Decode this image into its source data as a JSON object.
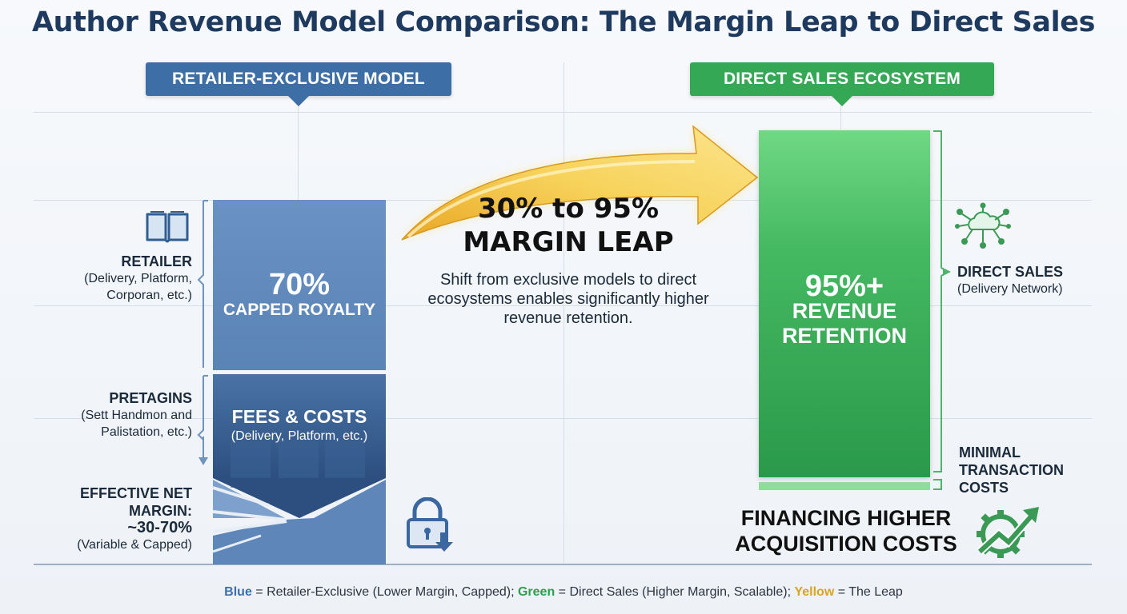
{
  "title": "Author Revenue Model Comparison: The Margin Leap to Direct Sales",
  "left": {
    "banner": "RETAILER-EXCLUSIVE MODEL",
    "retailer_label": "RETAILER",
    "retailer_sub": "(Delivery, Platform, Corporan, etc.)",
    "pretagins_label": "PRETAGINS",
    "pretagins_sub": "(Sett Handmon and Palistation, etc.)",
    "net_label": "EFFECTIVE NET MARGIN:",
    "net_value": "~30-70%",
    "net_sub": "(Variable & Capped)",
    "box_top_value": "70%",
    "box_top_label": "CAPPED ROYALTY",
    "box_bottom_label": "FEES & COSTS",
    "box_bottom_sub": "(Delivery, Platform, etc.)"
  },
  "middle": {
    "leap_title": "30% to 95% MARGIN LEAP",
    "leap_desc": "Shift from exclusive models to direct ecosystems enables significantly higher revenue retention."
  },
  "right": {
    "banner": "DIRECT SALES ECOSYSTEM",
    "box_value": "95%+",
    "box_label": "REVENUE RETENTION",
    "direct_label": "DIRECT SALES",
    "direct_sub": "(Delivery Network)",
    "minimal_label": "MINIMAL TRANSACTION COSTS",
    "financing": "FINANCING HIGHER ACQUISITION COSTS"
  },
  "legend": {
    "blue_word": "Blue",
    "blue_text": " = Retailer-Exclusive (Lower Margin, Capped); ",
    "green_word": "Green",
    "green_text": " = Direct Sales (Higher Margin, Scalable); ",
    "yellow_word": "Yellow",
    "yellow_text": " = The Leap"
  },
  "colors": {
    "blue": "#3d6fa6",
    "green": "#35a856",
    "yellow": "#f2c230"
  },
  "icons": [
    "book-icon",
    "lock-download-icon",
    "cloud-network-icon",
    "growth-gear-icon",
    "leap-arrow"
  ]
}
